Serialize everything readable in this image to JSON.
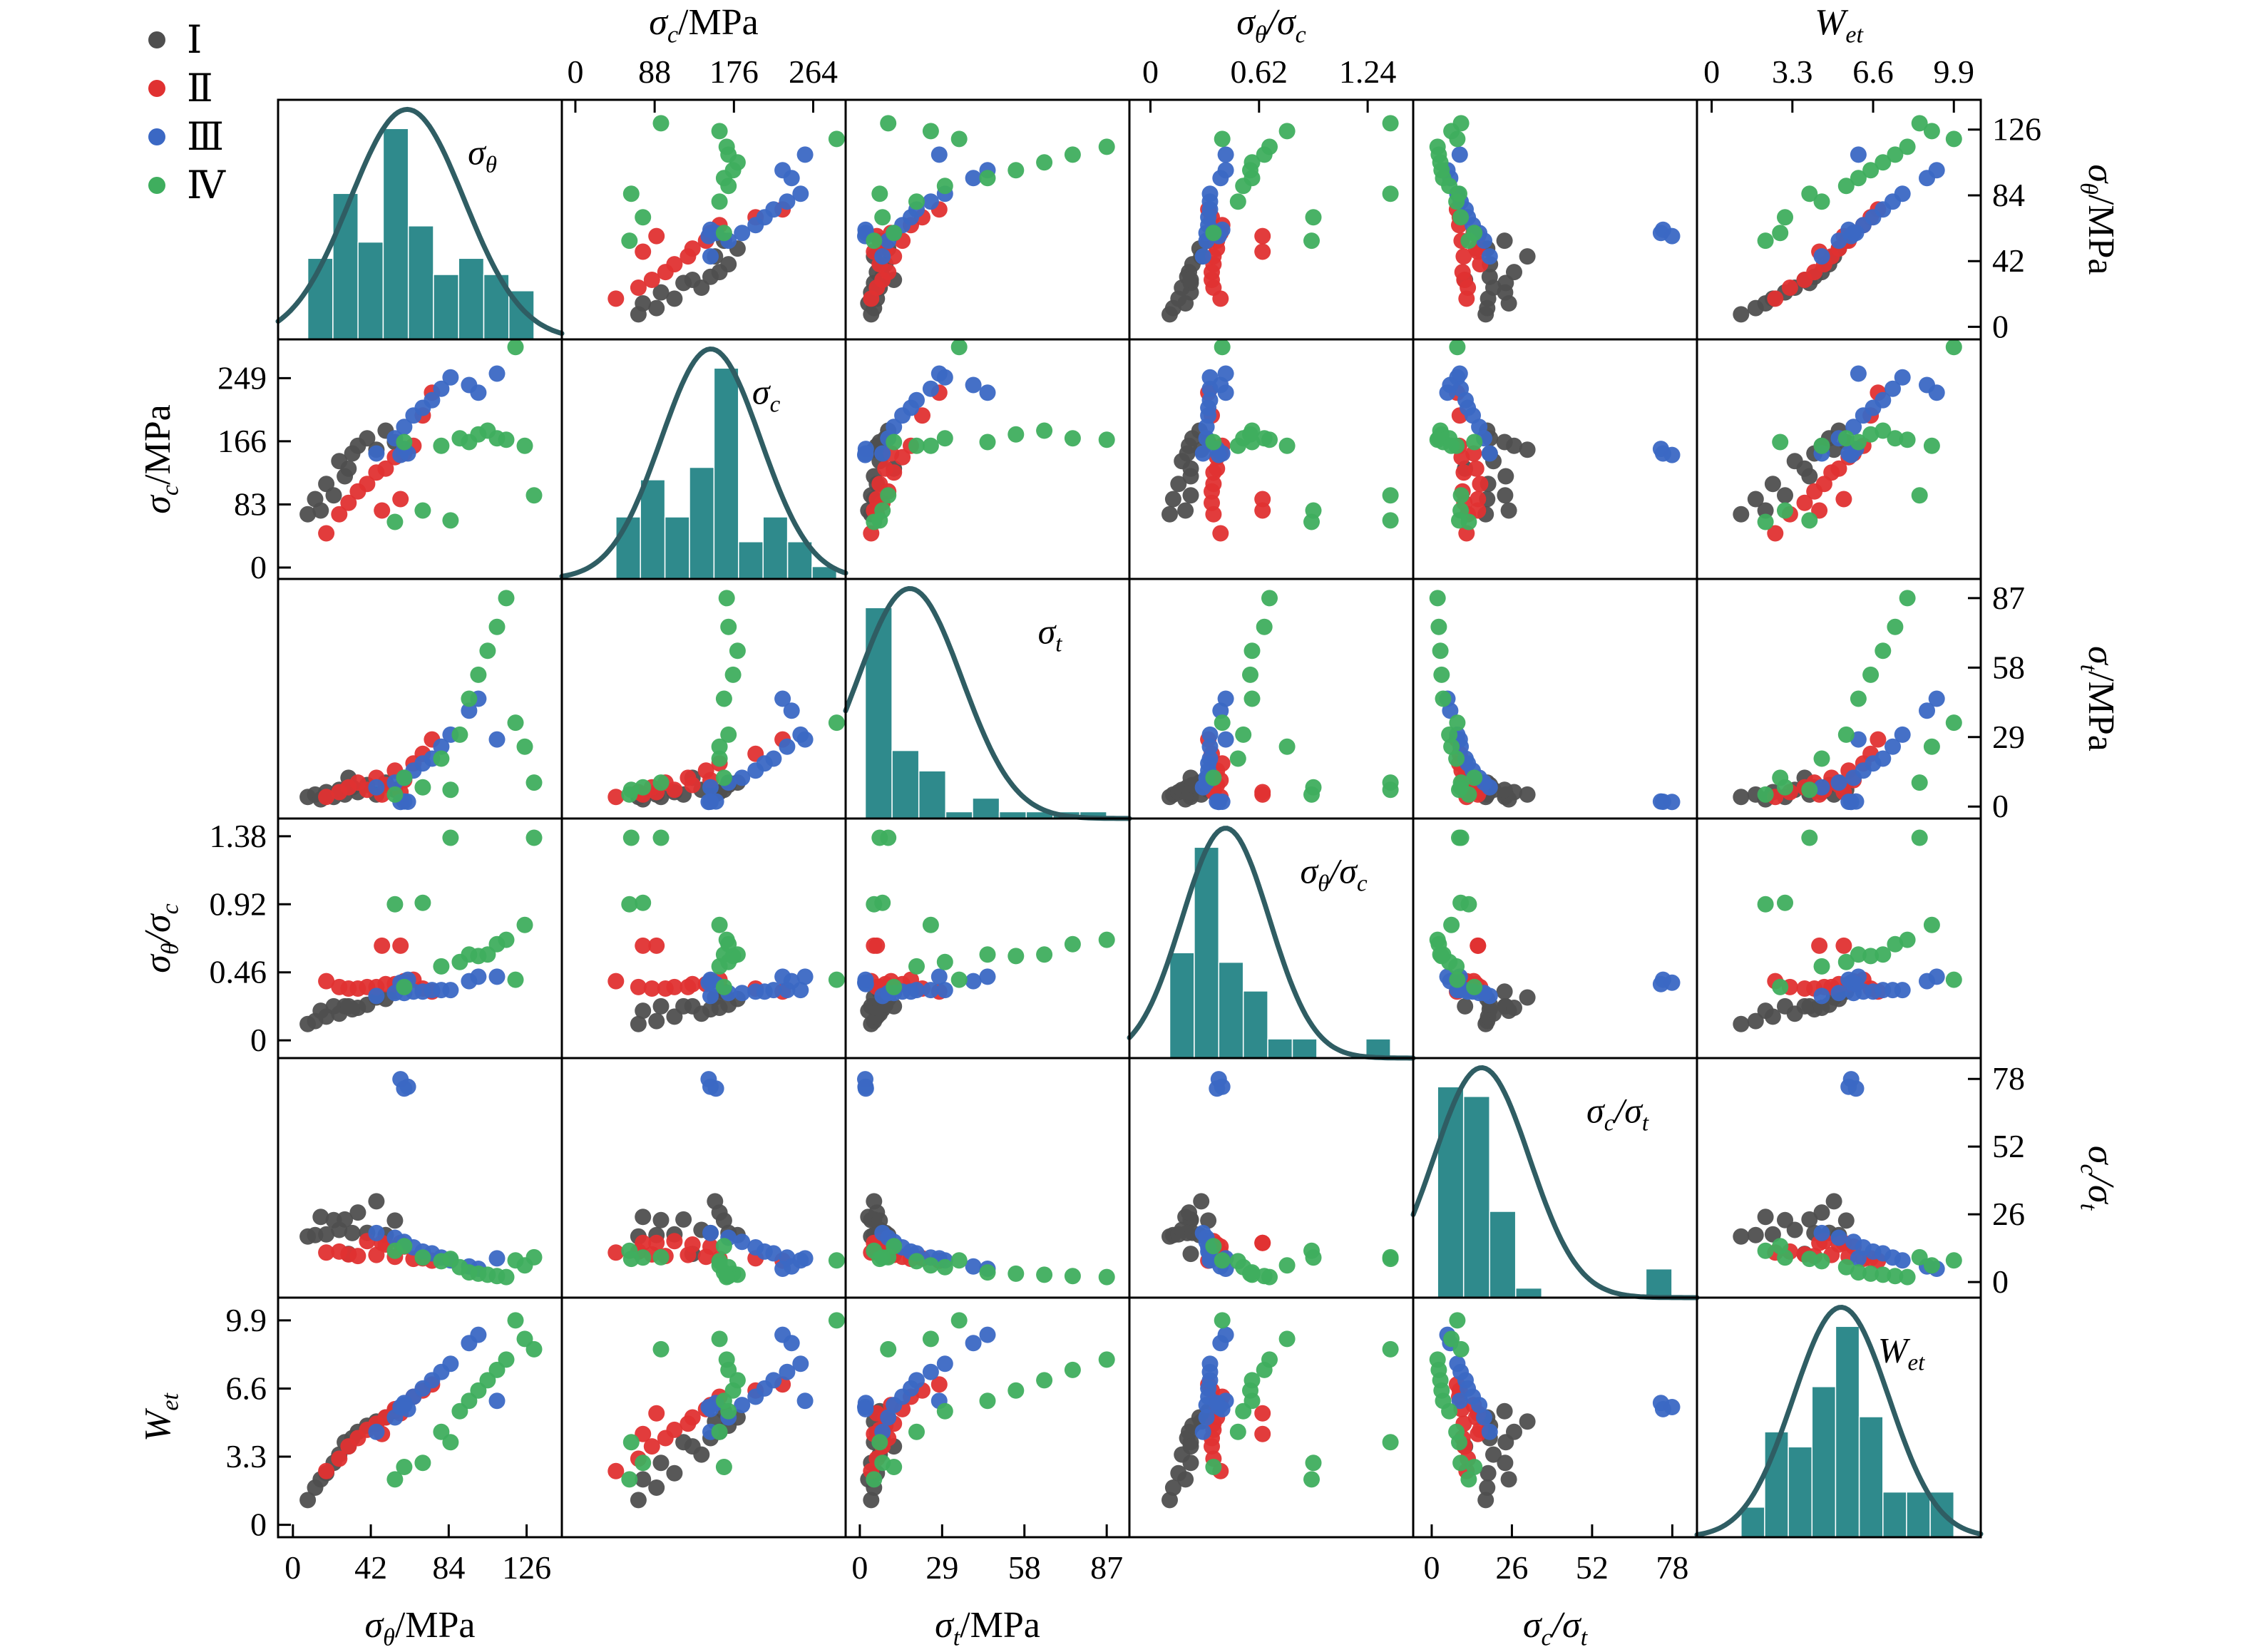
{
  "legend": {
    "items": [
      {
        "label": "Ⅰ",
        "color": "#4f4f4f"
      },
      {
        "label": "Ⅱ",
        "color": "#e03131"
      },
      {
        "label": "Ⅲ",
        "color": "#3b68c4"
      },
      {
        "label": "Ⅳ",
        "color": "#3fae5e"
      }
    ]
  },
  "colors": {
    "hist_bar": "#2f8a8c",
    "hist_curve": "#2f5d63",
    "axis": "#000000",
    "background": "#ffffff"
  },
  "chart_data": {
    "type": "scatter_matrix",
    "description": "6x6 pairs plot of rock mechanics variables with group-colored scatter panels and teal histograms with fitted density curves on the diagonal",
    "variables": [
      {
        "key": "sigma_theta",
        "title_parts": [
          {
            "t": "σ",
            "s": "θ",
            "i": true
          },
          {
            "t": "/MPa",
            "s": "",
            "i": false
          }
        ],
        "diag_parts": [
          {
            "t": "σ",
            "s": "θ",
            "i": true
          }
        ],
        "ticks_col": [
          0,
          42,
          84,
          126
        ],
        "ticks_row": [
          0,
          42,
          84,
          126
        ],
        "range": [
          -8,
          145
        ]
      },
      {
        "key": "sigma_c",
        "title_parts": [
          {
            "t": "σ",
            "s": "c",
            "i": true
          },
          {
            "t": "/MPa",
            "s": "",
            "i": false
          }
        ],
        "diag_parts": [
          {
            "t": "σ",
            "s": "c",
            "i": true
          }
        ],
        "ticks_col": [
          0,
          88,
          176,
          264
        ],
        "ticks_row": [
          0,
          83,
          166,
          249
        ],
        "range": [
          -15,
          300
        ]
      },
      {
        "key": "sigma_t",
        "title_parts": [
          {
            "t": "σ",
            "s": "t",
            "i": true
          },
          {
            "t": "/MPa",
            "s": "",
            "i": false
          }
        ],
        "diag_parts": [
          {
            "t": "σ",
            "s": "t",
            "i": true
          }
        ],
        "ticks_col": [
          0,
          29,
          58,
          87
        ],
        "ticks_row": [
          0,
          29,
          58,
          87
        ],
        "range": [
          -5,
          95
        ]
      },
      {
        "key": "ratio_theta_c",
        "title_parts": [
          {
            "t": "σ",
            "s": "θ",
            "i": true
          },
          {
            "t": "/σ",
            "s": "c",
            "i": true
          }
        ],
        "diag_parts": [
          {
            "t": "σ",
            "s": "θ",
            "i": true
          },
          {
            "t": "/σ",
            "s": "c",
            "i": true
          }
        ],
        "ticks_col": [
          0,
          0.62,
          1.24
        ],
        "ticks_row": [
          0,
          0.46,
          0.92,
          1.38
        ],
        "range": [
          -0.12,
          1.5
        ]
      },
      {
        "key": "ratio_c_t",
        "title_parts": [
          {
            "t": "σ",
            "s": "c",
            "i": true
          },
          {
            "t": "/σ",
            "s": "t",
            "i": true
          }
        ],
        "diag_parts": [
          {
            "t": "σ",
            "s": "c",
            "i": true
          },
          {
            "t": "/σ",
            "s": "t",
            "i": true
          }
        ],
        "ticks_col": [
          0,
          26,
          52,
          78
        ],
        "ticks_row": [
          0,
          26,
          52,
          78
        ],
        "range": [
          -6,
          86
        ]
      },
      {
        "key": "wet",
        "title_parts": [
          {
            "t": "W",
            "s": "et",
            "i": true
          }
        ],
        "diag_parts": [
          {
            "t": "W",
            "s": "et",
            "i": true
          }
        ],
        "ticks_col": [
          0,
          3.3,
          6.6,
          9.9
        ],
        "ticks_row": [
          0,
          3.3,
          6.6,
          9.9
        ],
        "range": [
          -0.6,
          11
        ]
      }
    ],
    "groups": [
      {
        "name": "Ⅰ",
        "color": "#4f4f4f"
      },
      {
        "name": "Ⅱ",
        "color": "#e03131"
      },
      {
        "name": "Ⅲ",
        "color": "#3b68c4"
      },
      {
        "name": "Ⅳ",
        "color": "#3fae5e"
      }
    ],
    "points": [
      {
        "g": 0,
        "v": [
          8,
          70,
          4,
          0.11,
          17.5,
          1.2
        ]
      },
      {
        "g": 0,
        "v": [
          12,
          90,
          5,
          0.13,
          18.0,
          1.8
        ]
      },
      {
        "g": 0,
        "v": [
          15,
          75,
          3,
          0.2,
          25.0,
          2.2
        ]
      },
      {
        "g": 0,
        "v": [
          18,
          110,
          6,
          0.16,
          18.3,
          2.5
        ]
      },
      {
        "g": 0,
        "v": [
          22,
          95,
          4,
          0.23,
          23.8,
          3.0
        ]
      },
      {
        "g": 0,
        "v": [
          25,
          140,
          7,
          0.18,
          20.0,
          3.4
        ]
      },
      {
        "g": 0,
        "v": [
          28,
          120,
          5,
          0.23,
          24.0,
          4.0
        ]
      },
      {
        "g": 0,
        "v": [
          32,
          150,
          8,
          0.21,
          18.8,
          4.2
        ]
      },
      {
        "g": 0,
        "v": [
          35,
          160,
          6,
          0.22,
          26.7,
          4.5
        ]
      },
      {
        "g": 0,
        "v": [
          40,
          170,
          9,
          0.24,
          18.9,
          4.8
        ]
      },
      {
        "g": 0,
        "v": [
          45,
          155,
          5,
          0.29,
          31.0,
          5.0
        ]
      },
      {
        "g": 0,
        "v": [
          50,
          180,
          10,
          0.28,
          18.0,
          5.2
        ]
      },
      {
        "g": 0,
        "v": [
          55,
          165,
          7,
          0.33,
          23.6,
          5.5
        ]
      },
      {
        "g": 0,
        "v": [
          30,
          130,
          12,
          0.23,
          10.8,
          3.8
        ]
      },
      {
        "g": 1,
        "v": [
          18,
          45,
          4,
          0.4,
          11.3,
          2.6
        ]
      },
      {
        "g": 1,
        "v": [
          25,
          70,
          6,
          0.36,
          11.7,
          3.2
        ]
      },
      {
        "g": 1,
        "v": [
          30,
          85,
          8,
          0.35,
          10.6,
          3.8
        ]
      },
      {
        "g": 1,
        "v": [
          35,
          100,
          10,
          0.35,
          10.0,
          4.2
        ]
      },
      {
        "g": 1,
        "v": [
          40,
          110,
          7,
          0.36,
          15.7,
          4.6
        ]
      },
      {
        "g": 1,
        "v": [
          45,
          125,
          12,
          0.36,
          10.4,
          4.9
        ]
      },
      {
        "g": 1,
        "v": [
          50,
          130,
          9,
          0.38,
          14.4,
          5.2
        ]
      },
      {
        "g": 1,
        "v": [
          55,
          145,
          15,
          0.38,
          9.7,
          5.6
        ]
      },
      {
        "g": 1,
        "v": [
          60,
          150,
          11,
          0.4,
          13.6,
          5.8
        ]
      },
      {
        "g": 1,
        "v": [
          65,
          160,
          18,
          0.41,
          8.9,
          6.2
        ]
      },
      {
        "g": 1,
        "v": [
          70,
          200,
          22,
          0.35,
          9.1,
          6.5
        ]
      },
      {
        "g": 1,
        "v": [
          75,
          230,
          28,
          0.33,
          8.2,
          6.8
        ]
      },
      {
        "g": 1,
        "v": [
          58,
          90,
          6,
          0.64,
          15.0,
          5.4
        ]
      },
      {
        "g": 1,
        "v": [
          48,
          75,
          5,
          0.64,
          15.0,
          4.4
        ]
      },
      {
        "g": 2,
        "v": [
          45,
          150,
          8,
          0.3,
          18.8,
          4.5
        ]
      },
      {
        "g": 2,
        "v": [
          55,
          170,
          10,
          0.32,
          17.0,
          5.2
        ]
      },
      {
        "g": 2,
        "v": [
          60,
          185,
          12,
          0.32,
          15.4,
          5.8
        ]
      },
      {
        "g": 2,
        "v": [
          65,
          200,
          15,
          0.33,
          13.3,
          6.2
        ]
      },
      {
        "g": 2,
        "v": [
          70,
          210,
          18,
          0.33,
          11.7,
          6.6
        ]
      },
      {
        "g": 2,
        "v": [
          75,
          220,
          20,
          0.34,
          11.0,
          7.0
        ]
      },
      {
        "g": 2,
        "v": [
          80,
          235,
          25,
          0.34,
          9.4,
          7.4
        ]
      },
      {
        "g": 2,
        "v": [
          85,
          250,
          30,
          0.34,
          8.3,
          7.8
        ]
      },
      {
        "g": 2,
        "v": [
          95,
          240,
          40,
          0.4,
          6.0,
          8.8
        ]
      },
      {
        "g": 2,
        "v": [
          100,
          230,
          45,
          0.43,
          5.1,
          9.2
        ]
      },
      {
        "g": 2,
        "v": [
          110,
          255,
          28,
          0.43,
          9.1,
          6.0
        ]
      },
      {
        "g": 2,
        "v": [
          58,
          148,
          1.9,
          0.39,
          77.9,
          5.7
        ]
      },
      {
        "g": 2,
        "v": [
          60,
          156,
          2.1,
          0.38,
          74.3,
          5.9
        ]
      },
      {
        "g": 2,
        "v": [
          62,
          150,
          2.0,
          0.41,
          75.0,
          5.6
        ]
      },
      {
        "g": 3,
        "v": [
          55,
          60,
          5,
          0.92,
          12.0,
          2.2
        ]
      },
      {
        "g": 3,
        "v": [
          70,
          75,
          8,
          0.93,
          9.4,
          3.0
        ]
      },
      {
        "g": 3,
        "v": [
          80,
          160,
          20,
          0.5,
          8.0,
          4.5
        ]
      },
      {
        "g": 3,
        "v": [
          90,
          170,
          30,
          0.53,
          5.7,
          5.5
        ]
      },
      {
        "g": 3,
        "v": [
          95,
          165,
          45,
          0.58,
          3.7,
          6.0
        ]
      },
      {
        "g": 3,
        "v": [
          100,
          175,
          55,
          0.57,
          3.2,
          6.5
        ]
      },
      {
        "g": 3,
        "v": [
          105,
          180,
          65,
          0.58,
          2.8,
          7.0
        ]
      },
      {
        "g": 3,
        "v": [
          110,
          170,
          75,
          0.65,
          2.3,
          7.5
        ]
      },
      {
        "g": 3,
        "v": [
          115,
          168,
          87,
          0.68,
          1.9,
          8.0
        ]
      },
      {
        "g": 3,
        "v": [
          120,
          290,
          35,
          0.41,
          8.3,
          9.9
        ]
      },
      {
        "g": 3,
        "v": [
          125,
          160,
          25,
          0.78,
          6.4,
          9.0
        ]
      },
      {
        "g": 3,
        "v": [
          130,
          95,
          10,
          1.37,
          9.5,
          8.5
        ]
      },
      {
        "g": 3,
        "v": [
          85,
          62,
          7,
          1.37,
          8.9,
          4.0
        ]
      },
      {
        "g": 3,
        "v": [
          60,
          165,
          12,
          0.36,
          13.8,
          2.8
        ]
      }
    ]
  }
}
